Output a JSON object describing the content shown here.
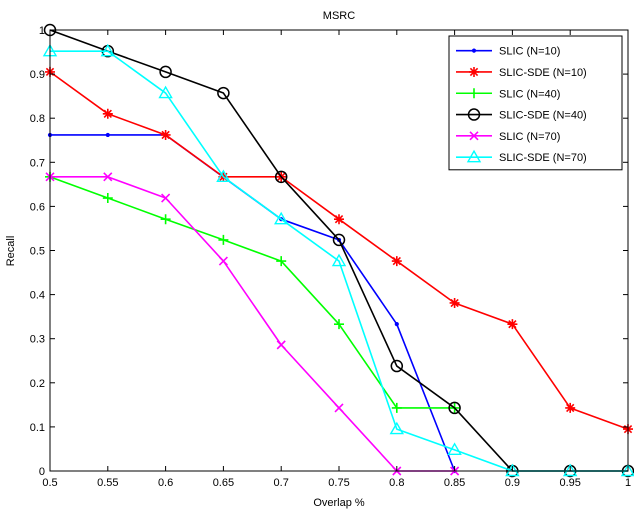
{
  "chart_data": {
    "type": "line",
    "title": "MSRC",
    "xlabel": "Overlap %",
    "ylabel": "Recall",
    "xlim": [
      0.5,
      1
    ],
    "ylim": [
      0,
      1
    ],
    "x_ticks": [
      "0.5",
      "0.55",
      "0.6",
      "0.65",
      "0.7",
      "0.75",
      "0.8",
      "0.85",
      "0.9",
      "0.95",
      "1"
    ],
    "y_ticks": [
      "0",
      "0.1",
      "0.2",
      "0.3",
      "0.4",
      "0.5",
      "0.6",
      "0.7",
      "0.8",
      "0.9",
      "1"
    ],
    "grid": false,
    "legend_position": "top-right",
    "series": [
      {
        "name": "SLIC (N=10)",
        "color": "#0000ff",
        "marker": "point",
        "x": [
          0.5,
          0.55,
          0.6,
          0.7,
          0.75,
          0.8,
          0.85
        ],
        "y": [
          0.762,
          0.762,
          0.762,
          0.571,
          0.524,
          0.333,
          0.0
        ]
      },
      {
        "name": "SLIC-SDE (N=10)",
        "color": "#ff0000",
        "marker": "asterisk",
        "x": [
          0.5,
          0.55,
          0.6,
          0.65,
          0.7,
          0.75,
          0.8,
          0.85,
          0.9,
          0.95,
          1.0
        ],
        "y": [
          0.905,
          0.81,
          0.762,
          0.667,
          0.667,
          0.571,
          0.476,
          0.381,
          0.333,
          0.143,
          0.095
        ]
      },
      {
        "name": "SLIC (N=40)",
        "color": "#00ff00",
        "marker": "plus",
        "x": [
          0.5,
          0.55,
          0.6,
          0.65,
          0.7,
          0.75,
          0.8,
          0.85
        ],
        "y": [
          0.667,
          0.619,
          0.571,
          0.524,
          0.476,
          0.333,
          0.143,
          0.143
        ]
      },
      {
        "name": "SLIC-SDE (N=40)",
        "color": "#000000",
        "marker": "circle",
        "x": [
          0.5,
          0.55,
          0.6,
          0.65,
          0.7,
          0.75,
          0.8,
          0.85,
          0.9,
          0.95,
          1.0
        ],
        "y": [
          1.0,
          0.952,
          0.905,
          0.857,
          0.667,
          0.524,
          0.238,
          0.143,
          0.0,
          0.0,
          0.0
        ]
      },
      {
        "name": "SLIC (N=70)",
        "color": "#ff00ff",
        "marker": "x",
        "x": [
          0.5,
          0.55,
          0.6,
          0.65,
          0.7,
          0.75,
          0.8,
          0.85
        ],
        "y": [
          0.667,
          0.667,
          0.619,
          0.476,
          0.286,
          0.143,
          0.0,
          0.0
        ]
      },
      {
        "name": "SLIC-SDE (N=70)",
        "color": "#00ffff",
        "marker": "triangle",
        "x": [
          0.5,
          0.55,
          0.6,
          0.65,
          0.7,
          0.75,
          0.8,
          0.85,
          0.9,
          0.95,
          1.0
        ],
        "y": [
          0.952,
          0.952,
          0.857,
          0.667,
          0.571,
          0.476,
          0.095,
          0.048,
          0.0,
          0.0,
          0.0
        ]
      }
    ]
  }
}
